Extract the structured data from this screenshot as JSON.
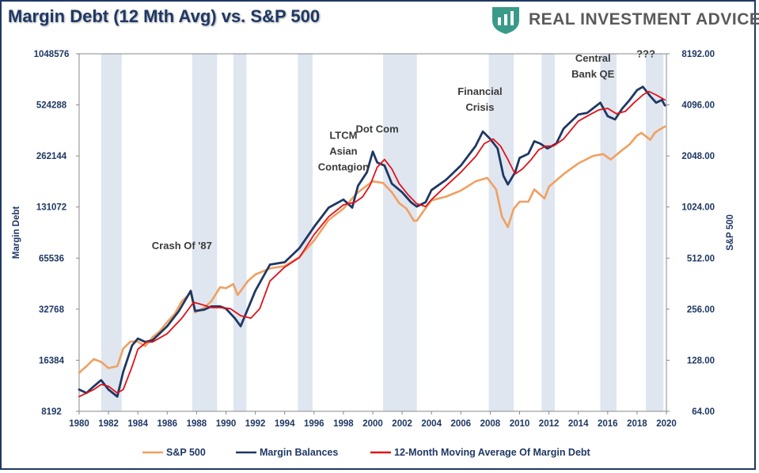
{
  "page": {
    "title": "Margin Debt (12 Mth Avg) vs. S&P 500",
    "brand": "REAL INVESTMENT ADVICE"
  },
  "colors": {
    "frame": "#1f3864",
    "sp500": "#f0a060",
    "margin": "#1f3864",
    "avg": "#e0121a",
    "recession": "#dfe6f0",
    "logo": "#3a9a8a"
  },
  "chart_data": {
    "type": "line",
    "title": "Margin Debt (12 Mth Avg) vs. S&P 500",
    "xlabel": "",
    "ylabel": "Margin Debt",
    "y2label": "S&P 500",
    "xlim": [
      1980,
      2020
    ],
    "x_ticks": [
      "1980",
      "1982",
      "1984",
      "1986",
      "1988",
      "1990",
      "1992",
      "1994",
      "1996",
      "1998",
      "2000",
      "2002",
      "2004",
      "2006",
      "2008",
      "2010",
      "2012",
      "2014",
      "2016",
      "2018",
      "2020"
    ],
    "y_scale": "log2",
    "ylim": [
      8192,
      1048576
    ],
    "y_ticks": [
      "8192",
      "16384",
      "32768",
      "65536",
      "131072",
      "262144",
      "524288",
      "1048576"
    ],
    "y2_scale": "log2",
    "y2lim": [
      64,
      8192
    ],
    "y2_ticks": [
      "64.00",
      "128.00",
      "256.00",
      "512.00",
      "1024.00",
      "2048.00",
      "4096.00",
      "8192.00"
    ],
    "legend_position": "bottom",
    "shaded_periods": [
      [
        1981.5,
        1982.9
      ],
      [
        1987.7,
        1989.4
      ],
      [
        1990.5,
        1991.4
      ],
      [
        1994.9,
        1995.9
      ],
      [
        2000.7,
        2003.0
      ],
      [
        2007.9,
        2009.6
      ],
      [
        2011.5,
        2012.4
      ],
      [
        2015.5,
        2016.6
      ],
      [
        2018.6,
        2019.8
      ]
    ],
    "annotations": [
      {
        "lines": [
          "Crash Of '87"
        ],
        "x": 1987.0,
        "y": 74000
      },
      {
        "lines": [
          "LTCM",
          "Asian",
          "Contagion"
        ],
        "x": 1998.0,
        "y": 330000
      },
      {
        "lines": [
          "Dot Com"
        ],
        "x": 2000.3,
        "y": 360000
      },
      {
        "lines": [
          "Financial",
          "Crisis"
        ],
        "x": 2007.3,
        "y": 600000
      },
      {
        "lines": [
          "Central",
          "Bank QE"
        ],
        "x": 2015.0,
        "y": 940000
      },
      {
        "lines": [
          "???"
        ],
        "x": 2018.6,
        "y": 1000000
      }
    ],
    "series": [
      {
        "name": "S&P 500",
        "axis": "right",
        "x": [
          1980.0,
          1980.5,
          1981.0,
          1981.5,
          1982.0,
          1982.6,
          1983.0,
          1983.5,
          1984.0,
          1984.5,
          1985.0,
          1985.5,
          1986.0,
          1986.5,
          1987.0,
          1987.6,
          1987.9,
          1988.5,
          1989.0,
          1989.6,
          1990.0,
          1990.5,
          1990.8,
          1991.5,
          1992.0,
          1993.0,
          1994.0,
          1995.0,
          1996.0,
          1997.0,
          1998.0,
          1998.6,
          1999.0,
          1999.5,
          2000.0,
          2000.7,
          2001.3,
          2001.8,
          2002.3,
          2002.8,
          2003.0,
          2003.5,
          2004.0,
          2005.0,
          2006.0,
          2007.0,
          2007.8,
          2008.4,
          2008.8,
          2009.2,
          2009.6,
          2010.0,
          2010.6,
          2011.0,
          2011.7,
          2012.0,
          2013.0,
          2014.0,
          2015.0,
          2015.7,
          2016.2,
          2016.8,
          2017.5,
          2018.0,
          2018.3,
          2018.9,
          2019.2,
          2019.6,
          2019.9
        ],
        "values": [
          108,
          118,
          130,
          125,
          115,
          118,
          150,
          165,
          165,
          155,
          175,
          190,
          215,
          240,
          285,
          320,
          245,
          260,
          285,
          345,
          340,
          360,
          310,
          375,
          410,
          445,
          460,
          520,
          650,
          860,
          1000,
          1150,
          1250,
          1350,
          1450,
          1420,
          1250,
          1080,
          1000,
          850,
          850,
          980,
          1120,
          1180,
          1280,
          1450,
          1520,
          1300,
          900,
          780,
          1000,
          1100,
          1100,
          1300,
          1150,
          1350,
          1600,
          1850,
          2050,
          2100,
          1950,
          2150,
          2400,
          2700,
          2800,
          2550,
          2800,
          2950,
          3050
        ]
      },
      {
        "name": "Margin Balances",
        "axis": "left",
        "x": [
          1980.0,
          1980.5,
          1981.0,
          1981.5,
          1982.0,
          1982.6,
          1983.0,
          1983.6,
          1984.0,
          1984.5,
          1985.0,
          1986.0,
          1986.8,
          1987.6,
          1987.9,
          1988.5,
          1989.0,
          1989.6,
          1990.0,
          1990.6,
          1991.0,
          1991.5,
          1992.0,
          1993.0,
          1994.0,
          1995.0,
          1996.0,
          1997.0,
          1998.0,
          1998.6,
          1999.0,
          1999.6,
          2000.0,
          2000.3,
          2000.8,
          2001.3,
          2002.0,
          2002.6,
          2003.0,
          2003.6,
          2004.0,
          2005.0,
          2006.0,
          2007.0,
          2007.5,
          2008.0,
          2008.5,
          2008.9,
          2009.2,
          2009.7,
          2010.0,
          2010.6,
          2011.0,
          2011.4,
          2011.9,
          2012.5,
          2013.0,
          2014.0,
          2014.6,
          2015.0,
          2015.5,
          2016.0,
          2016.5,
          2017.0,
          2017.5,
          2018.0,
          2018.4,
          2018.9,
          2019.3,
          2019.7,
          2019.9
        ],
        "values": [
          11000,
          10500,
          11500,
          12500,
          11000,
          10000,
          14000,
          20000,
          22000,
          21000,
          21500,
          26000,
          32000,
          42000,
          32000,
          32500,
          34000,
          34000,
          33000,
          29000,
          26000,
          33000,
          42000,
          60000,
          62000,
          75000,
          100000,
          130000,
          145000,
          130000,
          175000,
          210000,
          278000,
          240000,
          230000,
          180000,
          160000,
          140000,
          132000,
          140000,
          165000,
          190000,
          230000,
          300000,
          365000,
          330000,
          290000,
          200000,
          178000,
          210000,
          255000,
          270000,
          320000,
          310000,
          290000,
          310000,
          380000,
          460000,
          470000,
          500000,
          540000,
          450000,
          430000,
          500000,
          560000,
          640000,
          670000,
          590000,
          540000,
          560000,
          520000
        ]
      },
      {
        "name": "12-Month Moving Average Of Margin Debt",
        "axis": "left",
        "x": [
          1980.0,
          1980.5,
          1981.0,
          1981.5,
          1982.0,
          1982.6,
          1983.0,
          1983.6,
          1984.0,
          1984.6,
          1985.0,
          1986.0,
          1987.0,
          1987.8,
          1988.3,
          1989.0,
          1989.6,
          1990.3,
          1991.0,
          1991.7,
          1992.3,
          1993.0,
          1994.0,
          1995.0,
          1996.0,
          1997.0,
          1998.0,
          1998.8,
          1999.3,
          1999.8,
          2000.3,
          2000.8,
          2001.3,
          2001.8,
          2002.4,
          2003.0,
          2003.6,
          2004.0,
          2005.0,
          2006.0,
          2007.0,
          2007.6,
          2008.2,
          2008.7,
          2009.2,
          2009.7,
          2010.2,
          2010.8,
          2011.3,
          2011.8,
          2012.3,
          2013.0,
          2014.0,
          2014.8,
          2015.4,
          2016.0,
          2016.6,
          2017.2,
          2017.8,
          2018.4,
          2018.8,
          2019.3,
          2019.9
        ],
        "values": [
          10000,
          10500,
          11000,
          11800,
          11500,
          10500,
          11000,
          15000,
          19000,
          21000,
          21000,
          23500,
          29000,
          36000,
          35000,
          33500,
          33500,
          33000,
          30000,
          29000,
          33000,
          48000,
          58000,
          66000,
          90000,
          115000,
          135000,
          140000,
          150000,
          175000,
          225000,
          250000,
          220000,
          180000,
          155000,
          137000,
          132000,
          145000,
          175000,
          210000,
          260000,
          310000,
          330000,
          300000,
          250000,
          205000,
          220000,
          250000,
          285000,
          300000,
          300000,
          330000,
          420000,
          460000,
          490000,
          500000,
          465000,
          480000,
          540000,
          600000,
          630000,
          600000,
          560000
        ]
      }
    ]
  }
}
